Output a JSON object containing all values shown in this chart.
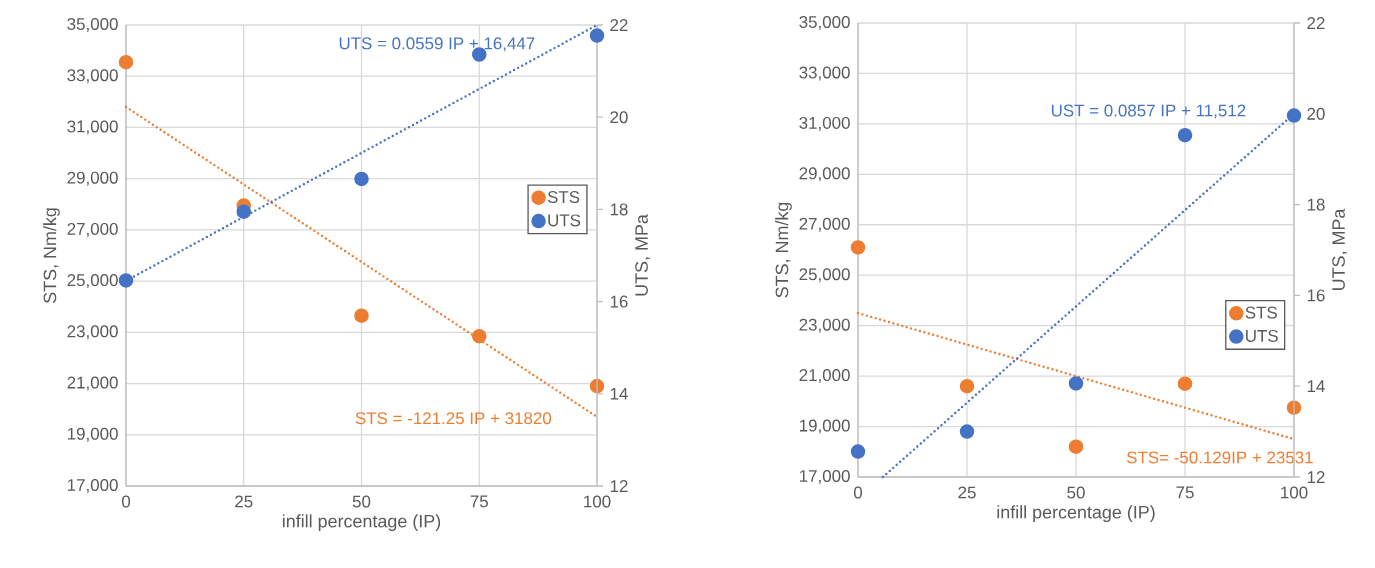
{
  "chart_data": [
    {
      "type": "scatter",
      "xlabel": "infill percentage (IP)",
      "ylabel": "STS, Nm/kg",
      "y2label": "UTS, MPa",
      "x": [
        0,
        25,
        50,
        75,
        100
      ],
      "series": [
        {
          "name": "STS",
          "color": "#ed7d31",
          "values": [
            33550,
            27950,
            23650,
            22850,
            20900
          ]
        },
        {
          "name": "UTS",
          "color": "#4472c4",
          "axis": "y2",
          "values": [
            16.46,
            17.95,
            18.66,
            21.36,
            21.77
          ]
        },
        {
          "type": "line",
          "color": "#ed7d31",
          "line_style": "dotted",
          "marker": "none",
          "x": [
            0,
            100
          ],
          "values": [
            31800,
            19700
          ]
        },
        {
          "type": "line",
          "color": "#4472c4",
          "line_style": "dotted",
          "marker": "none",
          "axis": "y2",
          "x": [
            0,
            100
          ],
          "values": [
            16.45,
            22.0
          ]
        }
      ],
      "xlim": [
        0,
        100
      ],
      "xticks": [
        0,
        25,
        50,
        75,
        100
      ],
      "ylim": [
        17000,
        35000
      ],
      "yticks": [
        {
          "value": 17000,
          "label": "17,000"
        },
        {
          "value": 19000,
          "label": "19,000"
        },
        {
          "value": 21000,
          "label": "21,000"
        },
        {
          "value": 23000,
          "label": "23,000"
        },
        {
          "value": 25000,
          "label": "25,000"
        },
        {
          "value": 27000,
          "label": "27,000"
        },
        {
          "value": 29000,
          "label": "29,000"
        },
        {
          "value": 31000,
          "label": "31,000"
        },
        {
          "value": 33000,
          "label": "33,000"
        },
        {
          "value": 35000,
          "label": "35,000"
        }
      ],
      "y2lim": [
        12,
        22
      ],
      "y2ticks": [
        12,
        14,
        16,
        18,
        20,
        22
      ],
      "annotations": [
        "STS = -121.25 IP + 31820",
        "UTS = 0.0559 IP + 16,447"
      ],
      "grid": true,
      "legend": "right",
      "marker": "circle"
    },
    {
      "type": "scatter",
      "xlabel": "infill percentage (IP)",
      "ylabel": "STS, Nm/kg",
      "y2label": "UTS, MPa",
      "x": [
        0,
        25,
        50,
        75,
        100
      ],
      "series": [
        {
          "name": "STS",
          "color": "#ed7d31",
          "values": [
            26100,
            20600,
            18200,
            20700,
            19750
          ]
        },
        {
          "name": "UTS",
          "color": "#4472c4",
          "axis": "y2",
          "values": [
            12.56,
            13.0,
            14.06,
            19.53,
            19.96
          ]
        },
        {
          "type": "line",
          "color": "#ed7d31",
          "line_style": "dotted",
          "marker": "none",
          "x": [
            0,
            100
          ],
          "values": [
            23500,
            18500
          ]
        },
        {
          "type": "line",
          "color": "#4472c4",
          "line_style": "dotted",
          "marker": "none",
          "axis": "y2",
          "x": [
            5.7,
            100
          ],
          "values": [
            12.0,
            20.0
          ]
        }
      ],
      "xlim": [
        0,
        100
      ],
      "xticks": [
        0,
        25,
        50,
        75,
        100
      ],
      "ylim": [
        17000,
        35000
      ],
      "yticks": [
        {
          "value": 17000,
          "label": "17,000"
        },
        {
          "value": 19000,
          "label": "19,000"
        },
        {
          "value": 21000,
          "label": "21,000"
        },
        {
          "value": 23000,
          "label": "23,000"
        },
        {
          "value": 25000,
          "label": "25,000"
        },
        {
          "value": 27000,
          "label": "27,000"
        },
        {
          "value": 29000,
          "label": "29,000"
        },
        {
          "value": 31000,
          "label": "31,000"
        },
        {
          "value": 33000,
          "label": "33,000"
        },
        {
          "value": 35000,
          "label": "35,000"
        }
      ],
      "y2lim": [
        12,
        22
      ],
      "y2ticks": [
        12,
        14,
        16,
        18,
        20,
        22
      ],
      "annotations": [
        "STS= -50.129IP + 23531",
        "UST = 0.0857 IP + 11,512"
      ],
      "grid": true,
      "legend": "bottom right",
      "marker": "circle"
    }
  ]
}
